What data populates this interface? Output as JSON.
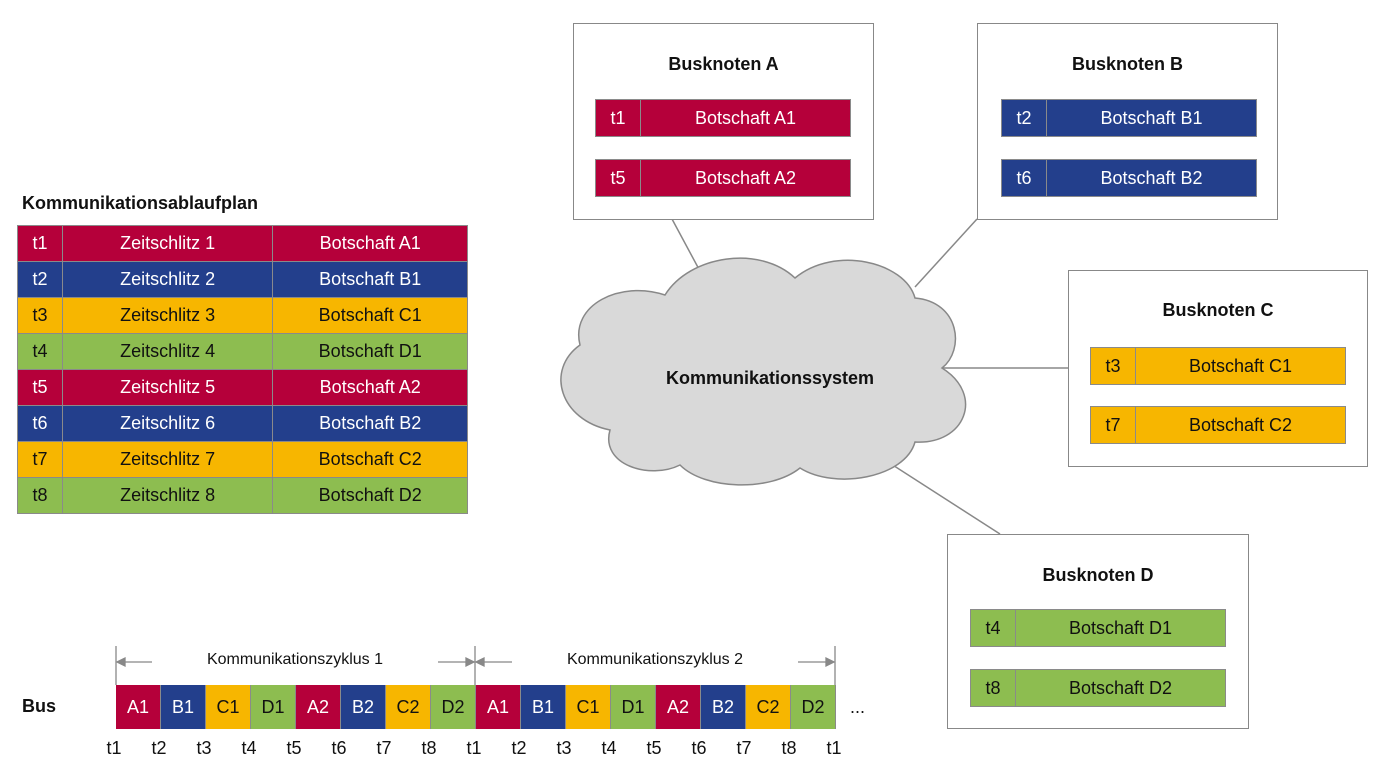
{
  "colors": {
    "A": "#b5003a",
    "B": "#233f8c",
    "C": "#f7b600",
    "D": "#8dbd50",
    "cloud": "#d9d9d9"
  },
  "schedule": {
    "title": "Kommunikationsablaufplan",
    "rows": [
      {
        "t": "t1",
        "slot": "Zeitschlitz 1",
        "msg": "Botschaft A1",
        "node": "A"
      },
      {
        "t": "t2",
        "slot": "Zeitschlitz 2",
        "msg": "Botschaft B1",
        "node": "B"
      },
      {
        "t": "t3",
        "slot": "Zeitschlitz 3",
        "msg": "Botschaft C1",
        "node": "C"
      },
      {
        "t": "t4",
        "slot": "Zeitschlitz 4",
        "msg": "Botschaft D1",
        "node": "D"
      },
      {
        "t": "t5",
        "slot": "Zeitschlitz 5",
        "msg": "Botschaft A2",
        "node": "A"
      },
      {
        "t": "t6",
        "slot": "Zeitschlitz 6",
        "msg": "Botschaft B2",
        "node": "B"
      },
      {
        "t": "t7",
        "slot": "Zeitschlitz 7",
        "msg": "Botschaft C2",
        "node": "C"
      },
      {
        "t": "t8",
        "slot": "Zeitschlitz 8",
        "msg": "Botschaft D2",
        "node": "D"
      }
    ]
  },
  "cloud_label": "Kommunikationssystem",
  "nodes": [
    {
      "key": "A",
      "title": "Busknoten A",
      "messages": [
        {
          "t": "t1",
          "msg": "Botschaft A1"
        },
        {
          "t": "t5",
          "msg": "Botschaft A2"
        }
      ]
    },
    {
      "key": "B",
      "title": "Busknoten B",
      "messages": [
        {
          "t": "t2",
          "msg": "Botschaft B1"
        },
        {
          "t": "t6",
          "msg": "Botschaft B2"
        }
      ]
    },
    {
      "key": "C",
      "title": "Busknoten C",
      "messages": [
        {
          "t": "t3",
          "msg": "Botschaft C1"
        },
        {
          "t": "t7",
          "msg": "Botschaft C2"
        }
      ]
    },
    {
      "key": "D",
      "title": "Busknoten D",
      "messages": [
        {
          "t": "t4",
          "msg": "Botschaft D1"
        },
        {
          "t": "t8",
          "msg": "Botschaft D2"
        }
      ]
    }
  ],
  "bus": {
    "label": "Bus",
    "cycles": [
      "Kommunikationszyklus 1",
      "Kommunikationszyklus 2"
    ],
    "segments": [
      "A1",
      "B1",
      "C1",
      "D1",
      "A2",
      "B2",
      "C2",
      "D2",
      "A1",
      "B1",
      "C1",
      "D1",
      "A2",
      "B2",
      "C2",
      "D2"
    ],
    "ellipsis": "...",
    "ticks": [
      "t1",
      "t2",
      "t3",
      "t4",
      "t5",
      "t6",
      "t7",
      "t8",
      "t1",
      "t2",
      "t3",
      "t4",
      "t5",
      "t6",
      "t7",
      "t8",
      "t1"
    ]
  }
}
